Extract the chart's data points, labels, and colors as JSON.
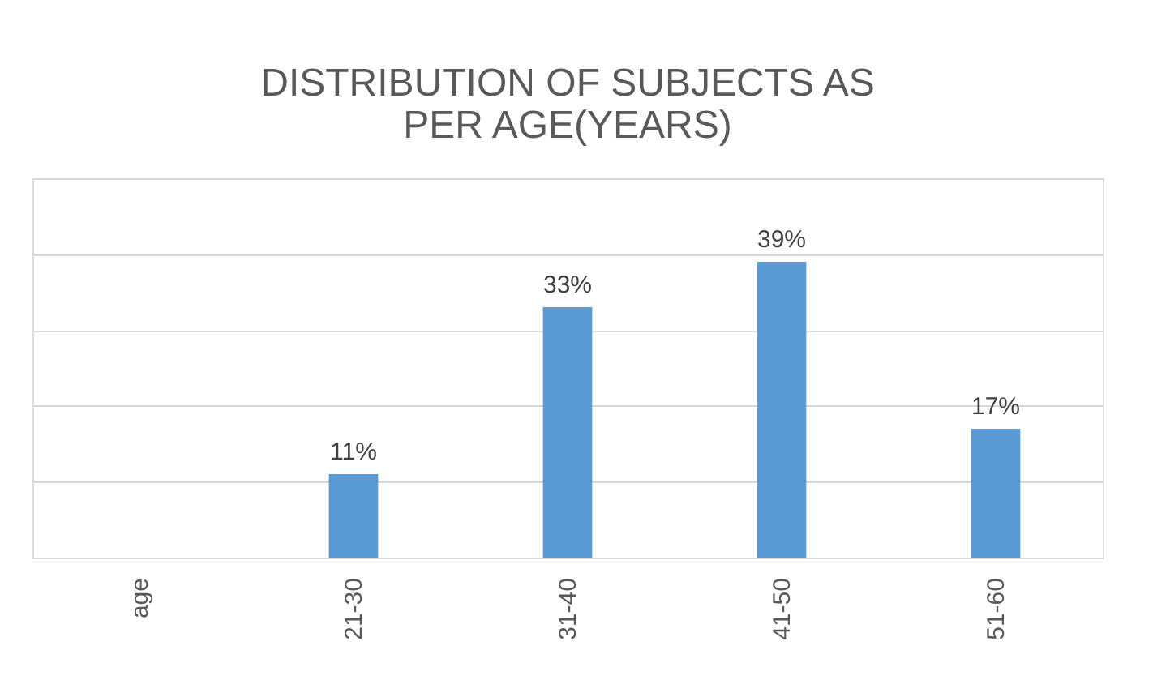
{
  "chart_data": {
    "type": "bar",
    "title": "DISTRIBUTION OF SUBJECTS AS PER AGE(YEARS)",
    "categories": [
      "age",
      "21-30",
      "31-40",
      "41-50",
      "51-60"
    ],
    "values": [
      null,
      11,
      33,
      39,
      17
    ],
    "value_labels": [
      null,
      "11%",
      "33%",
      "39%",
      "17%"
    ],
    "color": "#5b9bd5",
    "ylim": [
      0,
      50
    ],
    "yticks": [
      {
        "value": 0,
        "label": null
      },
      {
        "value": 10,
        "label": null
      },
      {
        "value": 20,
        "label": null
      },
      {
        "value": 30,
        "label": null
      },
      {
        "value": 40,
        "label": null
      },
      {
        "value": 50,
        "label": null
      }
    ],
    "grid": "y",
    "tick_labels": "x"
  }
}
